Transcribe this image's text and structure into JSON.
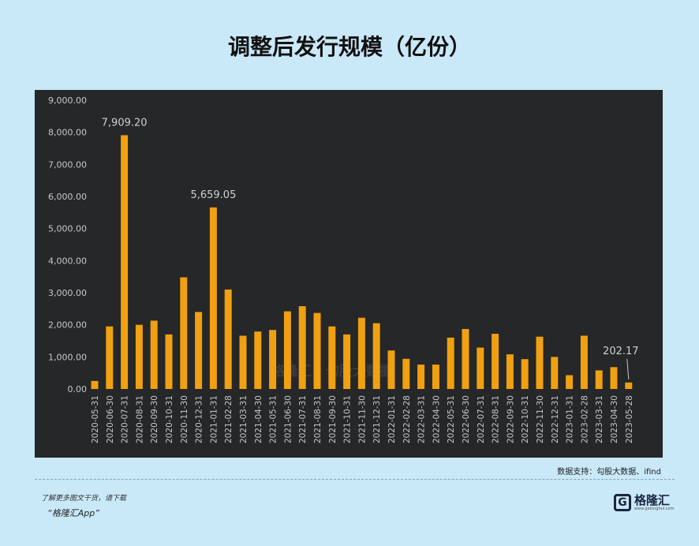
{
  "title": "调整后发行规模（亿份）",
  "source": "数据支持：勾股大数据、ifind",
  "footer": {
    "line1": "了解更多图文干货，请下载",
    "line2": "“格隆汇App”"
  },
  "logo": {
    "mark": "G",
    "name": "格隆汇",
    "url": "www.gelonghui.com"
  },
  "watermark": "格隆汇  |  勾股大数据",
  "chart_data": {
    "type": "bar",
    "title": "调整后发行规模（亿份）",
    "xlabel": "",
    "ylabel": "",
    "ylim": [
      0,
      9000
    ],
    "yticks": [
      "0.00",
      "1,000.00",
      "2,000.00",
      "3,000.00",
      "4,000.00",
      "5,000.00",
      "6,000.00",
      "7,000.00",
      "8,000.00",
      "9,000.00"
    ],
    "grid": false,
    "bar_color": "#f0a010",
    "categories": [
      "2020-05-31",
      "2020-06-30",
      "2020-07-31",
      "2020-08-31",
      "2020-09-30",
      "2020-10-31",
      "2020-11-30",
      "2020-12-31",
      "2021-01-31",
      "2021-02-28",
      "2021-03-31",
      "2021-04-30",
      "2021-05-31",
      "2021-06-30",
      "2021-07-31",
      "2021-08-31",
      "2021-09-30",
      "2021-10-31",
      "2021-11-30",
      "2021-12-31",
      "2022-01-31",
      "2022-02-28",
      "2022-03-31",
      "2022-04-30",
      "2022-05-31",
      "2022-06-30",
      "2022-07-31",
      "2022-08-31",
      "2022-09-30",
      "2022-10-31",
      "2022-11-30",
      "2022-12-31",
      "2023-01-31",
      "2023-02-28",
      "2023-03-31",
      "2023-04-30",
      "2023-05-28"
    ],
    "values": [
      250,
      1950,
      7909.2,
      2000,
      2130,
      1700,
      3480,
      2400,
      5659.05,
      3100,
      1660,
      1790,
      1840,
      2420,
      2580,
      2370,
      1950,
      1700,
      2220,
      2050,
      1200,
      940,
      760,
      760,
      1600,
      1870,
      1290,
      1720,
      1080,
      930,
      1630,
      1000,
      430,
      1660,
      580,
      680,
      202.17
    ],
    "annotations": [
      {
        "category": "2020-07-31",
        "text": "7,909.20"
      },
      {
        "category": "2021-01-31",
        "text": "5,659.05"
      },
      {
        "category": "2023-05-28",
        "text": "202.17"
      }
    ]
  }
}
